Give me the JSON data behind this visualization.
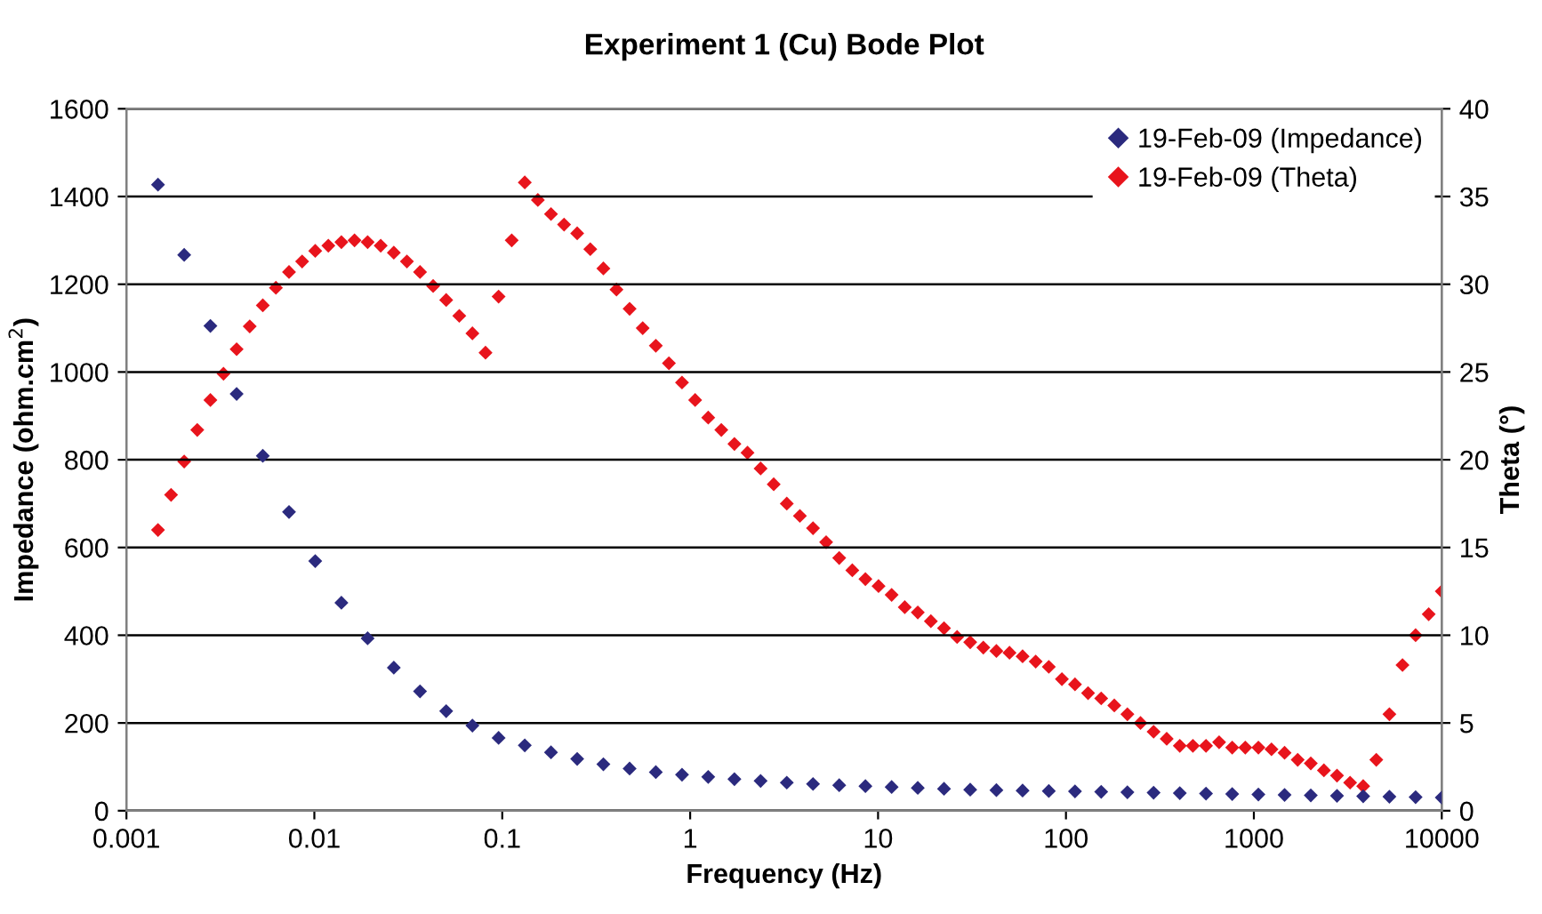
{
  "chart_data": {
    "type": "scatter",
    "title": "Experiment 1 (Cu) Bode Plot",
    "xlabel": "Frequency (Hz)",
    "ylabel": "Impedance (ohm.cm$^{2}$)",
    "y2label": "Theta (°)",
    "log": "x",
    "xlim": [
      0.001,
      10000
    ],
    "xticks": [
      0.001,
      0.01,
      0.1,
      1,
      10,
      100,
      1000,
      10000
    ],
    "ylim": [
      0,
      1600
    ],
    "yticks": [
      0,
      200,
      400,
      600,
      800,
      1000,
      1200,
      1400,
      1600
    ],
    "y2lim": [
      0,
      40
    ],
    "y2ticks": [
      0,
      5,
      10,
      15,
      20,
      25,
      30,
      35,
      40
    ],
    "grid": "y",
    "legend": "top right",
    "marker": "diamond",
    "series": [
      {
        "name": "19-Feb-09 (Impedance)",
        "color": "#2b2a7e",
        "x": [
          0.001472,
          0.002029,
          0.002798,
          0.003858,
          0.005317,
          0.007332,
          0.01011,
          0.01393,
          0.01921,
          0.02648,
          0.03651,
          0.05031,
          0.06937,
          0.09563,
          0.1318,
          0.1817,
          0.2505,
          0.3453,
          0.4762,
          0.6566,
          0.905,
          1.248,
          1.72,
          2.371,
          3.268,
          4.507,
          6.212,
          8.564,
          11.81,
          16.27,
          22.44,
          30.93,
          42.64,
          58.78,
          81.04,
          111.7,
          154.0,
          212.3,
          292.7,
          403.5,
          556.3,
          766.8,
          1057,
          1457,
          2009,
          2770,
          3818,
          5264,
          7257,
          10000
        ],
        "values": [
          1427,
          1267,
          1105,
          950,
          809,
          681,
          569,
          474,
          393,
          326,
          272,
          227,
          194,
          166,
          149,
          133,
          118,
          106,
          96,
          88,
          82,
          77,
          72,
          68,
          64,
          61,
          58,
          56,
          54,
          52,
          50,
          48,
          47,
          46,
          45,
          44,
          43,
          42,
          41,
          40,
          39,
          38,
          37,
          36,
          35,
          34,
          33,
          32,
          31,
          30
        ]
      },
      {
        "name": "19-Feb-09 (Theta)",
        "color": "#e8141c",
        "axis": "y2",
        "x": [
          0.001472,
          0.001728,
          0.002029,
          0.002382,
          0.002798,
          0.003285,
          0.003858,
          0.00453,
          0.005317,
          0.006243,
          0.007332,
          0.008609,
          0.01011,
          0.01187,
          0.01393,
          0.01636,
          0.01921,
          0.02255,
          0.02648,
          0.03109,
          0.03651,
          0.04287,
          0.05031,
          0.05907,
          0.06937,
          0.08145,
          0.09563,
          0.1123,
          0.1318,
          0.1547,
          0.1817,
          0.2133,
          0.2505,
          0.2941,
          0.3453,
          0.4054,
          0.4762,
          0.5591,
          0.6566,
          0.7709,
          0.905,
          1.063,
          1.248,
          1.465,
          1.72,
          2.019,
          2.371,
          2.784,
          3.268,
          3.837,
          4.507,
          5.292,
          6.212,
          7.294,
          8.564,
          10.06,
          11.81,
          13.87,
          16.27,
          19.1,
          22.44,
          26.35,
          30.93,
          36.32,
          42.64,
          50.06,
          58.78,
          69.01,
          81.04,
          95.15,
          111.7,
          131.1,
          154.0,
          180.8,
          212.3,
          249.3,
          292.7,
          343.7,
          403.5,
          473.7,
          556.3,
          653.2,
          766.8,
          900.3,
          1057,
          1241,
          1457,
          1711,
          2009,
          2359,
          2770,
          3252,
          3818,
          4483,
          5264,
          6180,
          7257,
          8520,
          10000
        ],
        "values": [
          16.0,
          18.0,
          19.9,
          21.7,
          23.4,
          24.9,
          26.3,
          27.6,
          28.8,
          29.8,
          30.7,
          31.3,
          31.9,
          32.2,
          32.4,
          32.5,
          32.4,
          32.2,
          31.8,
          31.3,
          30.7,
          29.9,
          29.1,
          28.2,
          27.2,
          26.1,
          29.3,
          32.5,
          35.8,
          34.8,
          34.0,
          33.4,
          32.9,
          32.0,
          30.9,
          29.7,
          28.6,
          27.5,
          26.5,
          25.5,
          24.4,
          23.4,
          22.4,
          21.7,
          20.9,
          20.4,
          19.5,
          18.6,
          17.5,
          16.8,
          16.1,
          15.3,
          14.4,
          13.7,
          13.2,
          12.8,
          12.3,
          11.6,
          11.3,
          10.8,
          10.4,
          9.9,
          9.6,
          9.3,
          9.1,
          9.0,
          8.8,
          8.5,
          8.2,
          7.5,
          7.2,
          6.7,
          6.4,
          6.0,
          5.5,
          5.0,
          4.5,
          4.1,
          3.7,
          3.7,
          3.7,
          3.9,
          3.6,
          3.6,
          3.6,
          3.5,
          3.3,
          2.9,
          2.7,
          2.3,
          2.0,
          1.6,
          1.4,
          2.9,
          5.5,
          8.3,
          10.0,
          11.2,
          12.5
        ]
      }
    ]
  }
}
